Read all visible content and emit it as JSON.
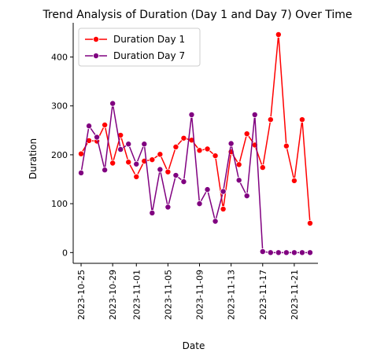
{
  "chart_data": {
    "type": "line",
    "title": "Trend Analysis of  Duration (Day 1 and Day 7) Over Time",
    "xlabel": "Date",
    "ylabel": "Duration",
    "x_start": "2023-10-25",
    "x": [
      "2023-10-25",
      "2023-10-26",
      "2023-10-27",
      "2023-10-28",
      "2023-10-29",
      "2023-10-30",
      "2023-10-31",
      "2023-11-01",
      "2023-11-02",
      "2023-11-03",
      "2023-11-04",
      "2023-11-05",
      "2023-11-06",
      "2023-11-07",
      "2023-11-08",
      "2023-11-09",
      "2023-11-10",
      "2023-11-11",
      "2023-11-12",
      "2023-11-13",
      "2023-11-14",
      "2023-11-15",
      "2023-11-16",
      "2023-11-17",
      "2023-11-18",
      "2023-11-19",
      "2023-11-20",
      "2023-11-21",
      "2023-11-22",
      "2023-11-23"
    ],
    "xticks": [
      "2023-10-25",
      "2023-10-29",
      "2023-11-01",
      "2023-11-05",
      "2023-11-09",
      "2023-11-13",
      "2023-11-17",
      "2023-11-21"
    ],
    "yticks": [
      0,
      100,
      200,
      300,
      400
    ],
    "xlim": [
      "2023-10-24",
      "2023-11-24"
    ],
    "ylim": [
      -22,
      470
    ],
    "grid": false,
    "legend": "upper-left",
    "series": [
      {
        "name": "Duration Day 1",
        "color": "#ff0000",
        "values": [
          202,
          229,
          228,
          261,
          183,
          240,
          185,
          155,
          187,
          190,
          201,
          165,
          216,
          234,
          230,
          209,
          212,
          198,
          89,
          206,
          180,
          243,
          220,
          174,
          272,
          446,
          218,
          147,
          272,
          60
        ]
      },
      {
        "name": "Duration Day 7",
        "color": "#800080",
        "values": [
          163,
          259,
          236,
          169,
          305,
          211,
          222,
          181,
          222,
          81,
          170,
          93,
          158,
          145,
          282,
          100,
          129,
          64,
          125,
          223,
          148,
          116,
          282,
          2,
          0,
          0,
          0,
          0,
          0,
          0
        ]
      }
    ]
  }
}
